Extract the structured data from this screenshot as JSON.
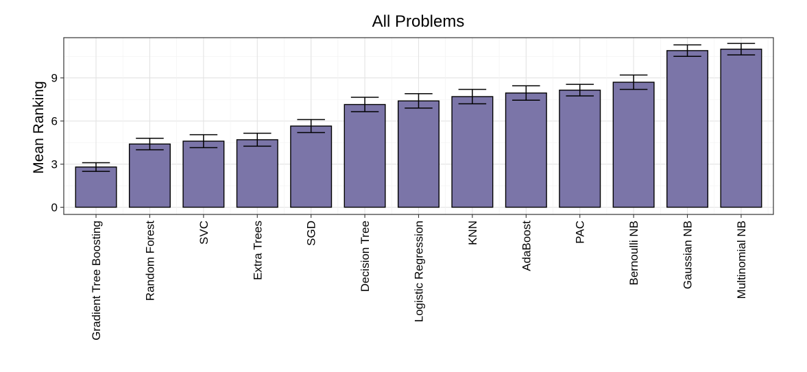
{
  "chart_data": {
    "type": "bar",
    "title": "All Problems",
    "xlabel": "",
    "ylabel": "Mean Ranking",
    "ylim": [
      -0.5,
      11.8
    ],
    "yticks": [
      0,
      3,
      6,
      9
    ],
    "grid": true,
    "bar_color": "#7b75a8",
    "categories": [
      "Gradient Tree Boosting",
      "Random Forest",
      "SVC",
      "Extra Trees",
      "SGD",
      "Decision Tree",
      "Logistic Regression",
      "KNN",
      "AdaBoost",
      "PAC",
      "Bernoulli NB",
      "Gaussian NB",
      "Multinomial NB"
    ],
    "values": [
      2.8,
      4.4,
      4.6,
      4.7,
      5.65,
      7.15,
      7.4,
      7.7,
      7.95,
      8.15,
      8.7,
      10.9,
      11.0
    ],
    "error": [
      0.3,
      0.4,
      0.45,
      0.45,
      0.45,
      0.5,
      0.5,
      0.5,
      0.5,
      0.4,
      0.5,
      0.4,
      0.4
    ]
  }
}
